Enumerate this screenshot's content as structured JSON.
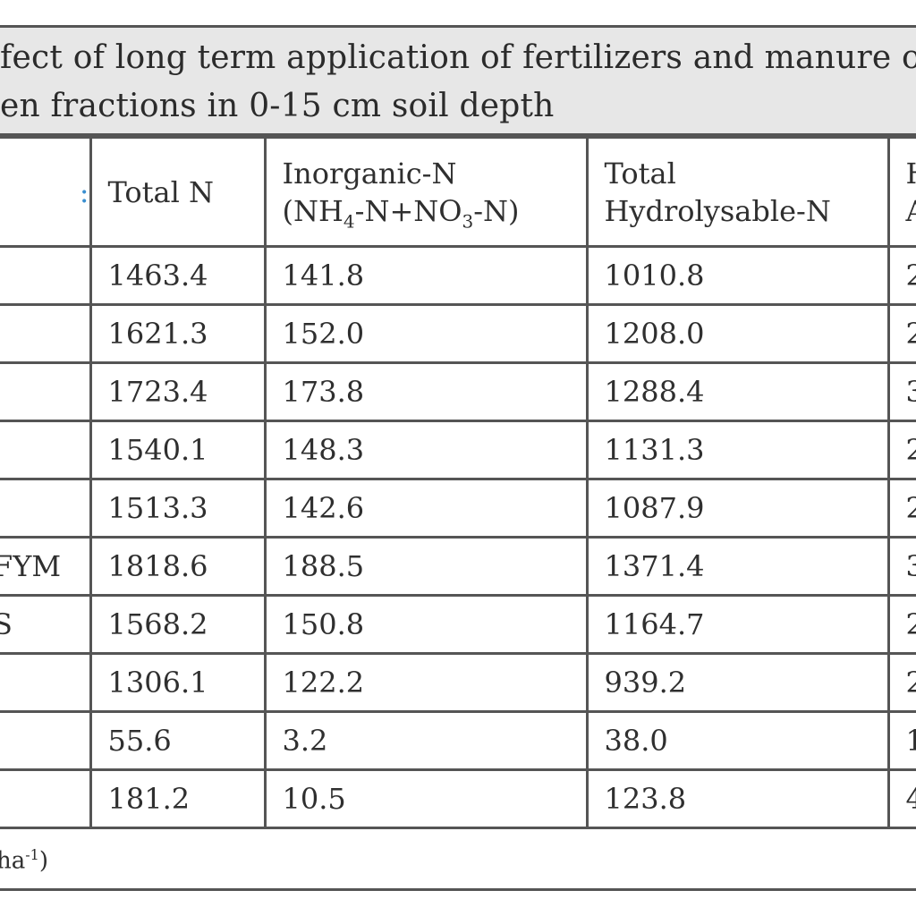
{
  "caption": {
    "line1": "fect of long term application of fertilizers and manure on",
    "line2": "en fractions in 0-15 cm soil depth"
  },
  "table": {
    "headers": {
      "col0": ":",
      "col1": "Total N",
      "col2_line1": "Inorganic-N",
      "col2_line2_a": "(NH",
      "col2_line2_sub1": "4",
      "col2_line2_b": "-N+NO",
      "col2_line2_sub2": "3",
      "col2_line2_c": "-N)",
      "col3_line1": "Total",
      "col3_line2": "Hydrolysable-N",
      "col4_line1": "H",
      "col4_line2": "A"
    },
    "rows": [
      {
        "treatment": "",
        "total_n": "1463.4",
        "inorganic_n": "141.8",
        "hydrolysable_n": "1010.8",
        "next": "2"
      },
      {
        "treatment": "",
        "total_n": "1621.3",
        "inorganic_n": "152.0",
        "hydrolysable_n": "1208.0",
        "next": "2"
      },
      {
        "treatment": "",
        "total_n": "1723.4",
        "inorganic_n": "173.8",
        "hydrolysable_n": "1288.4",
        "next": "3"
      },
      {
        "treatment": "",
        "total_n": "1540.1",
        "inorganic_n": "148.3",
        "hydrolysable_n": "1131.3",
        "next": "2"
      },
      {
        "treatment": "",
        "total_n": "1513.3",
        "inorganic_n": "142.6",
        "hydrolysable_n": "1087.9",
        "next": "2"
      },
      {
        "treatment": "FYM",
        "total_n": "1818.6",
        "inorganic_n": "188.5",
        "hydrolysable_n": "1371.4",
        "next": "3"
      },
      {
        "treatment": "S",
        "total_n": "1568.2",
        "inorganic_n": "150.8",
        "hydrolysable_n": "1164.7",
        "next": "2"
      },
      {
        "treatment": "",
        "total_n": "1306.1",
        "inorganic_n": "122.2",
        "hydrolysable_n": "939.2",
        "next": "2"
      },
      {
        "treatment": "",
        "total_n": "55.6",
        "inorganic_n": "3.2",
        "hydrolysable_n": "38.0",
        "next": "1"
      },
      {
        "treatment": "",
        "total_n": "181.2",
        "inorganic_n": "10.5",
        "hydrolysable_n": "123.8",
        "next": "4"
      }
    ]
  },
  "footnote": {
    "text_a": "ha",
    "text_sup": "-1",
    "text_b": ")"
  },
  "colors": {
    "border": "#555555",
    "caption_bg": "#e7e7e7",
    "text": "#2f2f2f",
    "header_accent": "#3a8fd0"
  }
}
